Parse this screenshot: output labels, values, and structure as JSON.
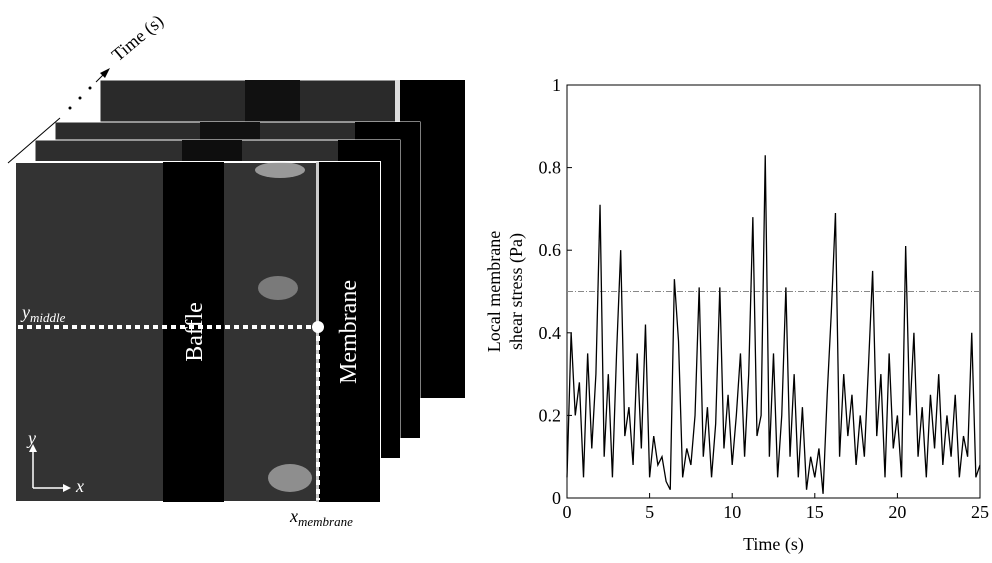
{
  "illustration": {
    "time_label": "Time (s)",
    "y_middle": {
      "base": "y",
      "sub": "middle"
    },
    "baffle": "Baffle",
    "membrane": "Membrane",
    "axis_y": "y",
    "axis_x": "x",
    "x_membrane": {
      "base": "x",
      "sub": "membrane"
    }
  },
  "chart_data": {
    "type": "line",
    "xlabel": "Time (s)",
    "ylabel": [
      "Local membrane",
      "shear stress (Pa)"
    ],
    "x": [
      0,
      0.25,
      0.5,
      0.75,
      1,
      1.25,
      1.5,
      1.75,
      2,
      2.25,
      2.5,
      2.75,
      3,
      3.25,
      3.5,
      3.75,
      4,
      4.25,
      4.5,
      4.75,
      5,
      5.25,
      5.5,
      5.75,
      6,
      6.25,
      6.5,
      6.75,
      7,
      7.25,
      7.5,
      7.75,
      8,
      8.25,
      8.5,
      8.75,
      9,
      9.25,
      9.5,
      9.75,
      10,
      10.25,
      10.5,
      10.75,
      11,
      11.25,
      11.5,
      11.75,
      12,
      12.25,
      12.5,
      12.75,
      13,
      13.25,
      13.5,
      13.75,
      14,
      14.25,
      14.5,
      14.75,
      15,
      15.25,
      15.5,
      15.75,
      16,
      16.25,
      16.5,
      16.75,
      17,
      17.25,
      17.5,
      17.75,
      18,
      18.25,
      18.5,
      18.75,
      19,
      19.25,
      19.5,
      19.75,
      20,
      20.25,
      20.5,
      20.75,
      21,
      21.25,
      21.5,
      21.75,
      22,
      22.25,
      22.5,
      22.75,
      23,
      23.25,
      23.5,
      23.75,
      24,
      24.25,
      24.5,
      24.75,
      25
    ],
    "series": [
      {
        "color": "#000000",
        "values": [
          0.05,
          0.4,
          0.2,
          0.28,
          0.05,
          0.35,
          0.12,
          0.3,
          0.71,
          0.1,
          0.3,
          0.05,
          0.35,
          0.6,
          0.15,
          0.22,
          0.08,
          0.35,
          0.12,
          0.42,
          0.05,
          0.15,
          0.08,
          0.1,
          0.04,
          0.02,
          0.53,
          0.38,
          0.05,
          0.12,
          0.08,
          0.2,
          0.51,
          0.1,
          0.22,
          0.05,
          0.18,
          0.51,
          0.12,
          0.25,
          0.08,
          0.2,
          0.35,
          0.1,
          0.3,
          0.68,
          0.15,
          0.2,
          0.83,
          0.1,
          0.35,
          0.05,
          0.2,
          0.51,
          0.1,
          0.3,
          0.05,
          0.22,
          0.02,
          0.1,
          0.05,
          0.12,
          0.01,
          0.25,
          0.45,
          0.69,
          0.1,
          0.3,
          0.15,
          0.25,
          0.08,
          0.2,
          0.1,
          0.32,
          0.55,
          0.15,
          0.3,
          0.05,
          0.35,
          0.12,
          0.2,
          0.05,
          0.61,
          0.2,
          0.4,
          0.1,
          0.22,
          0.05,
          0.25,
          0.12,
          0.3,
          0.08,
          0.2,
          0.1,
          0.25,
          0.05,
          0.15,
          0.1,
          0.4,
          0.05,
          0.08
        ]
      }
    ],
    "reference_line": {
      "value": 0.5,
      "color": "#888888"
    },
    "xlim": [
      0,
      25
    ],
    "xticks": [
      0,
      5,
      10,
      15,
      20,
      25
    ],
    "ylim": [
      0,
      1
    ],
    "yticks": [
      0,
      0.2,
      0.4,
      0.6,
      0.8,
      1
    ]
  }
}
